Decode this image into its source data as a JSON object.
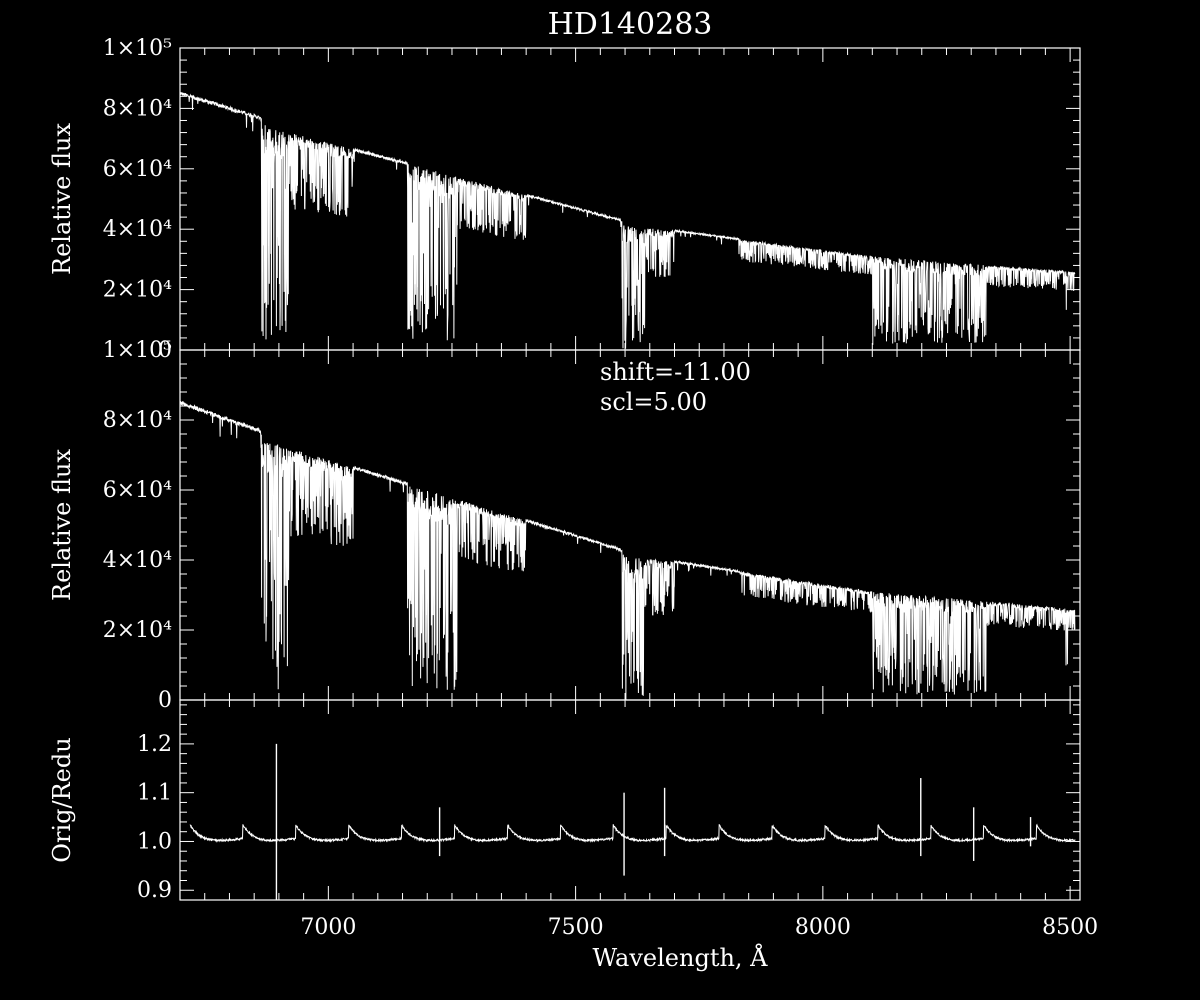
{
  "title": "HD140283",
  "colors": {
    "background": "#000000",
    "foreground": "#ffffff"
  },
  "chart_data": [
    {
      "type": "line",
      "panel": "top",
      "xlim": [
        6700,
        8520
      ],
      "ylim": [
        0,
        100000
      ],
      "xlabel": "",
      "ylabel": "Relative flux",
      "y_ticks": [
        {
          "value": 0,
          "label": "0"
        },
        {
          "value": 20000,
          "label": "2×10⁴"
        },
        {
          "value": 40000,
          "label": "4×10⁴"
        },
        {
          "value": 60000,
          "label": "6×10⁴"
        },
        {
          "value": 80000,
          "label": "8×10⁴"
        },
        {
          "value": 100000,
          "label": "1×10⁵"
        }
      ],
      "continuum": [
        [
          6700,
          85000
        ],
        [
          6860,
          77000
        ],
        [
          6875,
          74000
        ],
        [
          7200,
          60000
        ],
        [
          7590,
          43000
        ],
        [
          7600,
          41000
        ],
        [
          7700,
          39500
        ],
        [
          8100,
          31000
        ],
        [
          8500,
          26000
        ]
      ],
      "bands": [
        {
          "start": 6865,
          "end": 6920,
          "depth": 0.97
        },
        {
          "start": 6920,
          "end": 7050,
          "depth": 0.35
        },
        {
          "start": 7160,
          "end": 7260,
          "depth": 0.95
        },
        {
          "start": 7260,
          "end": 7400,
          "depth": 0.3
        },
        {
          "start": 7594,
          "end": 7640,
          "depth": 1.0
        },
        {
          "start": 7640,
          "end": 7700,
          "depth": 0.4
        },
        {
          "start": 8100,
          "end": 8330,
          "depth": 0.95
        },
        {
          "start": 7830,
          "end": 8100,
          "depth": 0.2
        },
        {
          "start": 8330,
          "end": 8510,
          "depth": 0.25
        },
        {
          "start": 8490,
          "end": 8495,
          "depth": 0.7
        }
      ],
      "annotations": []
    },
    {
      "type": "line",
      "panel": "middle",
      "xlim": [
        6700,
        8520
      ],
      "ylim": [
        0,
        100000
      ],
      "xlabel": "",
      "ylabel": "Relative flux",
      "y_ticks": [
        {
          "value": 0,
          "label": "0"
        },
        {
          "value": 20000,
          "label": "2×10⁴"
        },
        {
          "value": 40000,
          "label": "4×10⁴"
        },
        {
          "value": 60000,
          "label": "6×10⁴"
        },
        {
          "value": 80000,
          "label": "8×10⁴"
        },
        {
          "value": 100000,
          "label": "1×10⁵"
        }
      ],
      "continuum": [
        [
          6700,
          85000
        ],
        [
          6860,
          77000
        ],
        [
          6875,
          74000
        ],
        [
          7200,
          60000
        ],
        [
          7590,
          43000
        ],
        [
          7600,
          41000
        ],
        [
          7700,
          39500
        ],
        [
          8100,
          31000
        ],
        [
          8500,
          26000
        ]
      ],
      "bands": [
        {
          "start": 6865,
          "end": 6920,
          "depth": 0.97
        },
        {
          "start": 6920,
          "end": 7050,
          "depth": 0.35
        },
        {
          "start": 7160,
          "end": 7260,
          "depth": 0.95
        },
        {
          "start": 7260,
          "end": 7400,
          "depth": 0.3
        },
        {
          "start": 7594,
          "end": 7640,
          "depth": 1.0
        },
        {
          "start": 7640,
          "end": 7700,
          "depth": 0.4
        },
        {
          "start": 8100,
          "end": 8330,
          "depth": 0.95
        },
        {
          "start": 7830,
          "end": 8100,
          "depth": 0.2
        },
        {
          "start": 8330,
          "end": 8510,
          "depth": 0.25
        },
        {
          "start": 8490,
          "end": 8495,
          "depth": 0.7
        }
      ],
      "annotations": [
        "shift=-11.00",
        "scl=5.00"
      ]
    },
    {
      "type": "line",
      "panel": "bottom",
      "xlim": [
        6700,
        8520
      ],
      "ylim": [
        0.88,
        1.29
      ],
      "xlabel": "Wavelength, Å",
      "ylabel": "Orig/Redu",
      "y_ticks": [
        {
          "value": 0.9,
          "label": "0.9"
        },
        {
          "value": 1.0,
          "label": "1.0"
        },
        {
          "value": 1.1,
          "label": "1.1"
        },
        {
          "value": 1.2,
          "label": "1.2"
        }
      ],
      "x_ticks": [
        {
          "value": 7000,
          "label": "7000"
        },
        {
          "value": 7500,
          "label": "7500"
        },
        {
          "value": 8000,
          "label": "8000"
        },
        {
          "value": 8500,
          "label": "8500"
        }
      ],
      "baseline": 1.0,
      "order_period": 107,
      "spikes": [
        {
          "x": 6895,
          "ymax": 1.2,
          "ymin": 0.85
        },
        {
          "x": 7225,
          "ymax": 1.07,
          "ymin": 0.97
        },
        {
          "x": 7598,
          "ymax": 1.1,
          "ymin": 0.93
        },
        {
          "x": 7680,
          "ymax": 1.11,
          "ymin": 0.97
        },
        {
          "x": 8198,
          "ymax": 1.13,
          "ymin": 0.97
        },
        {
          "x": 8305,
          "ymax": 1.07,
          "ymin": 0.96
        },
        {
          "x": 8420,
          "ymax": 1.05,
          "ymin": 0.99
        }
      ]
    }
  ]
}
